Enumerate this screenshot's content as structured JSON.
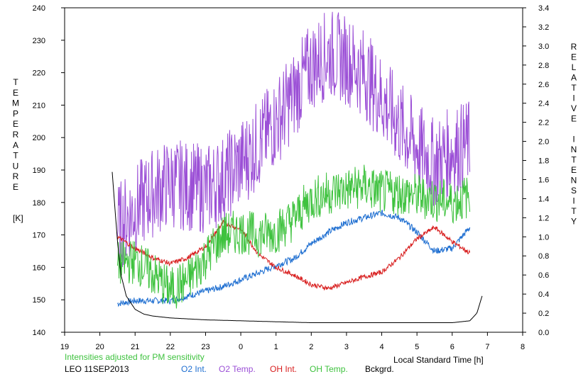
{
  "chart_data": {
    "type": "line",
    "left_axis_label": "TEMPERATURE",
    "left_axis_unit": "[K]",
    "right_axis_label": "RELATIVE INTENSITY",
    "xlabel": "Local Standard Time [h]",
    "note": "Intensities adjusted for PM sensitivity",
    "station": "LEO 11SEP2013",
    "x_ticks": [
      "19",
      "20",
      "21",
      "22",
      "23",
      "0",
      "1",
      "2",
      "3",
      "4",
      "5",
      "6",
      "7",
      "8"
    ],
    "xlim": [
      19,
      32
    ],
    "ylim_left": [
      140,
      240
    ],
    "ylim_right": [
      0,
      3.4
    ],
    "y_ticks_left": [
      "140",
      "150",
      "160",
      "170",
      "180",
      "190",
      "200",
      "210",
      "220",
      "230",
      "240"
    ],
    "y_ticks_right": [
      "0.0",
      "0.2",
      "0.4",
      "0.6",
      "0.8",
      "1.0",
      "1.2",
      "1.4",
      "1.6",
      "1.8",
      "2.0",
      "2.2",
      "2.4",
      "2.6",
      "2.8",
      "3.0",
      "3.2",
      "3.4"
    ],
    "legend_placement": "bottom",
    "series": [
      {
        "name": "O2 Int.",
        "axis": "right",
        "color": "#1f6fd1",
        "x": [
          20.5,
          21,
          21.5,
          22,
          22.5,
          23,
          23.5,
          24,
          24.5,
          25,
          25.5,
          26,
          26.5,
          27,
          27.5,
          28,
          28.5,
          29,
          29.5,
          30,
          30.5
        ],
        "y": [
          0.3,
          0.33,
          0.33,
          0.33,
          0.38,
          0.43,
          0.48,
          0.55,
          0.62,
          0.7,
          0.77,
          0.93,
          1.05,
          1.15,
          1.2,
          1.25,
          1.2,
          1.05,
          0.85,
          0.88,
          1.1
        ]
      },
      {
        "name": "O2 Temp.",
        "axis": "left",
        "color": "#9b4fd6",
        "x": [
          20.5,
          21,
          21.5,
          22,
          22.5,
          23,
          23.5,
          24,
          24.5,
          25,
          25.5,
          26,
          26.5,
          27,
          27.5,
          28,
          28.5,
          29,
          29.5,
          30,
          30.5
        ],
        "y": [
          172,
          178,
          183,
          186,
          185,
          184,
          187,
          192,
          198,
          205,
          213,
          222,
          226,
          224,
          220,
          212,
          204,
          197,
          192,
          196,
          198
        ]
      },
      {
        "name": "OH Int.",
        "axis": "right",
        "color": "#d81e1e",
        "x": [
          20.5,
          21,
          21.5,
          22,
          22.5,
          23,
          23.5,
          24,
          24.5,
          25,
          25.5,
          26,
          26.5,
          27,
          27.5,
          28,
          28.5,
          29,
          29.5,
          30,
          30.5
        ],
        "y": [
          1.0,
          0.88,
          0.78,
          0.72,
          0.78,
          0.9,
          1.15,
          1.08,
          0.82,
          0.68,
          0.6,
          0.5,
          0.46,
          0.52,
          0.58,
          0.63,
          0.78,
          0.98,
          1.1,
          0.95,
          0.83
        ]
      },
      {
        "name": "OH Temp.",
        "axis": "left",
        "color": "#3ec23e",
        "x": [
          20.5,
          21,
          21.5,
          22,
          22.5,
          23,
          23.5,
          24,
          24.5,
          25,
          25.5,
          26,
          26.5,
          27,
          27.5,
          28,
          28.5,
          29,
          29.5,
          30,
          30.5
        ],
        "y": [
          161,
          162,
          158,
          153,
          156,
          163,
          170,
          171,
          170,
          171,
          175,
          181,
          183,
          184,
          185,
          183,
          183,
          182,
          181,
          180,
          182
        ]
      },
      {
        "name": "Bckgrd.",
        "axis": "right",
        "color": "#000000",
        "x": [
          20.35,
          20.5,
          20.6,
          20.75,
          21,
          21.25,
          21.5,
          22,
          22.5,
          23,
          24,
          25,
          26,
          27,
          28,
          29,
          30,
          30.5,
          30.7,
          30.85
        ],
        "y": [
          1.68,
          0.95,
          0.6,
          0.38,
          0.24,
          0.19,
          0.17,
          0.15,
          0.14,
          0.13,
          0.12,
          0.11,
          0.1,
          0.1,
          0.1,
          0.1,
          0.1,
          0.12,
          0.2,
          0.38
        ]
      }
    ]
  }
}
